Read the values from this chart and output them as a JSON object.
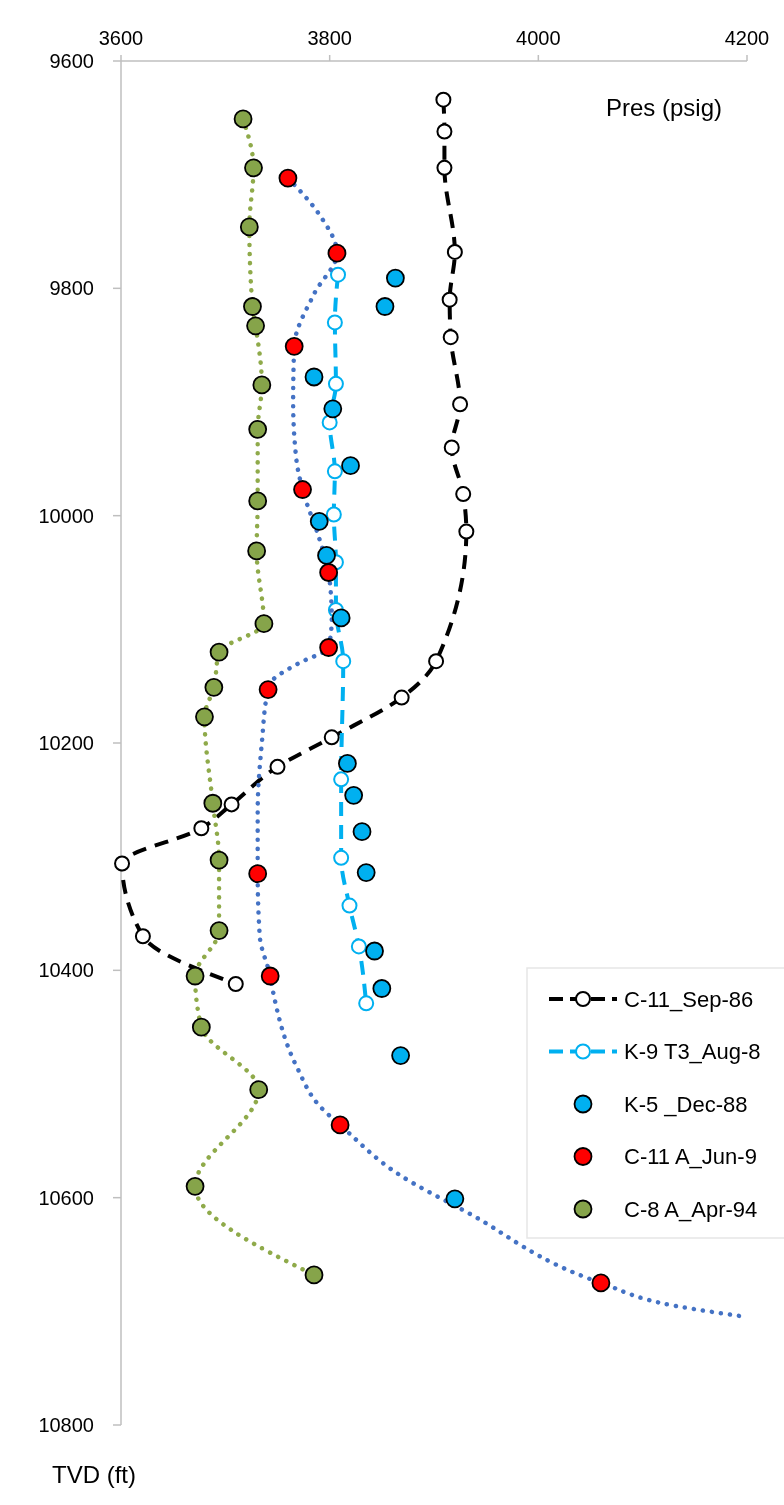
{
  "chart_data": {
    "type": "line",
    "xlabel": "Pres (psig)",
    "ylabel": "TVD (ft)",
    "xlim": [
      3600,
      4200
    ],
    "xticks": [
      3600,
      3800,
      4000,
      4200
    ],
    "ylim": [
      10800,
      9600
    ],
    "yticks": [
      9600,
      9800,
      10000,
      10200,
      10400,
      10600,
      10800
    ],
    "grid": false,
    "legend": "right",
    "series": [
      {
        "name": "C-11_Sep-86",
        "color": "#000000",
        "line_style": "dashed",
        "marker": "circle",
        "x": [
          3909,
          3910,
          3910,
          3920,
          3915,
          3916,
          3925,
          3917,
          3928,
          3931,
          3902,
          3869,
          3802,
          3750,
          3706,
          3677,
          3601,
          3621,
          3710
        ],
        "values": [
          9634,
          9662,
          9694,
          9768,
          9810,
          9843,
          9902,
          9940,
          9981,
          10014,
          10128,
          10160,
          10195,
          10221,
          10254,
          10275,
          10306,
          10370,
          10412
        ]
      },
      {
        "name": "K-9 T3_Aug-8",
        "color": "#00b0f0",
        "line_style": "dashed",
        "marker": "circle",
        "x": [
          3808,
          3805,
          3806,
          3800,
          3805,
          3804,
          3806,
          3806,
          3813,
          3811,
          3811,
          3819,
          3828,
          3835
        ],
        "values": [
          9788,
          9830,
          9884,
          9918,
          9961,
          9999,
          10041,
          10083,
          10128,
          10232,
          10301,
          10343,
          10379,
          10429
        ]
      },
      {
        "name": "K-5 _Dec-88",
        "type": "scatter",
        "color": "#00b0f0",
        "marker": "circle",
        "x": [
          3863,
          3853,
          3785,
          3803,
          3820,
          3790,
          3797,
          3811,
          3817,
          3823,
          3831,
          3835,
          3843,
          3850,
          3868,
          3920
        ],
        "values": [
          9791,
          9816,
          9878,
          9906,
          9956,
          10005,
          10035,
          10090,
          10218,
          10246,
          10278,
          10314,
          10383,
          10416,
          10475,
          10601
        ]
      },
      {
        "color": "#4472c4",
        "line_style": "dotted",
        "marker": "none",
        "x": [
          3760,
          3790,
          3807,
          3785,
          3766,
          3765,
          3768,
          3774,
          3790,
          3799,
          3802,
          3799,
          3770,
          3745,
          3741,
          3735,
          3731,
          3731,
          3733,
          3743,
          3746,
          3769,
          3791,
          3810,
          3867,
          3932,
          4060,
          4130,
          4200
        ],
        "values": [
          9703,
          9735,
          9769,
          9805,
          9851,
          9900,
          9950,
          9977,
          10020,
          10050,
          10090,
          10116,
          10130,
          10145,
          10153,
          10200,
          10260,
          10315,
          10370,
          10405,
          10420,
          10486,
          10520,
          10536,
          10580,
          10613,
          10675,
          10695,
          10705
        ]
      },
      {
        "name": "C-11 A_Jun-9",
        "type": "scatter",
        "color": "#ff0000",
        "marker": "circle",
        "x": [
          3760,
          3807,
          3766,
          3774,
          3799,
          3799,
          3741,
          3731,
          3743,
          3810,
          4060
        ],
        "values": [
          9703,
          9769,
          9851,
          9977,
          10050,
          10116,
          10153,
          10315,
          10405,
          10536,
          10675
        ]
      },
      {
        "color": "#8faa4a",
        "line_style": "dotted",
        "marker": "none",
        "x": [
          3717,
          3727,
          3723,
          3726,
          3729,
          3735,
          3731,
          3731,
          3730,
          3737,
          3694,
          3689,
          3680,
          3688,
          3694,
          3694,
          3671,
          3677,
          3732,
          3671,
          3785
        ],
        "values": [
          9651,
          9694,
          9746,
          9816,
          9833,
          9885,
          9924,
          9987,
          10031,
          10095,
          10120,
          10151,
          10177,
          10253,
          10303,
          10365,
          10405,
          10450,
          10505,
          10590,
          10668
        ]
      },
      {
        "name": "C-8 A_Apr-94",
        "type": "scatter",
        "color": "#86a44a",
        "marker": "circle",
        "x": [
          3717,
          3727,
          3723,
          3726,
          3729,
          3735,
          3731,
          3731,
          3730,
          3737,
          3694,
          3689,
          3680,
          3688,
          3694,
          3694,
          3671,
          3677,
          3732,
          3671,
          3785
        ],
        "values": [
          9651,
          9694,
          9746,
          9816,
          9833,
          9885,
          9924,
          9987,
          10031,
          10095,
          10120,
          10151,
          10177,
          10253,
          10303,
          10365,
          10405,
          10450,
          10505,
          10590,
          10668
        ]
      }
    ]
  }
}
